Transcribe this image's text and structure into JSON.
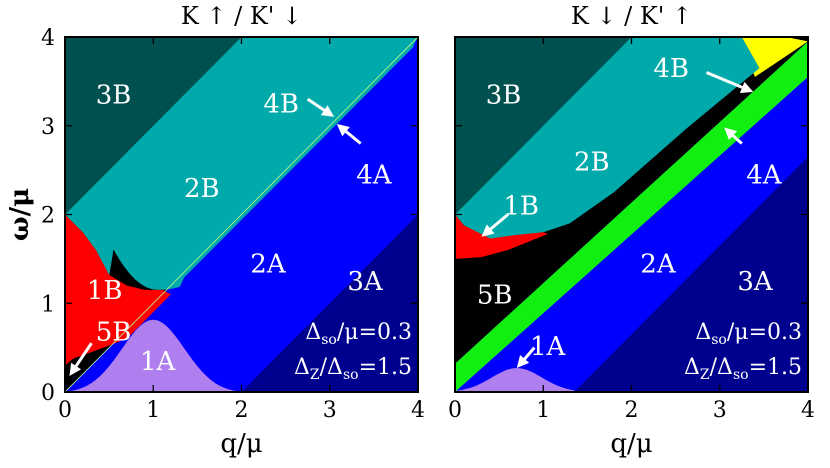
{
  "chart_data": [
    {
      "type": "area",
      "title": "K ↑ / K' ↓",
      "xlabel": "q/μ",
      "ylabel": "ω/μ",
      "xlim": [
        0,
        4
      ],
      "ylim": [
        0,
        4
      ],
      "xticks": [
        "0",
        "1",
        "2",
        "3",
        "4"
      ],
      "yticks": [
        "0",
        "1",
        "2",
        "3",
        "4"
      ],
      "colors": {
        "1A": "#b07fef",
        "1B": "#ff0000",
        "2A": "#0000ff",
        "2B": "#00aaaa",
        "3A": "#00008f",
        "3B": "#00504f",
        "4A": "#ffff00",
        "4B": "#10ef10",
        "5B": "#000000"
      },
      "regions": [
        {
          "label": "3B",
          "x": 0.55,
          "y": 3.35
        },
        {
          "label": "2B",
          "x": 1.55,
          "y": 2.3
        },
        {
          "label": "1B",
          "x": 0.45,
          "y": 1.15
        },
        {
          "label": "5B",
          "x": 0.55,
          "y": 0.68
        },
        {
          "label": "1A",
          "x": 1.05,
          "y": 0.35
        },
        {
          "label": "2A",
          "x": 2.3,
          "y": 1.45
        },
        {
          "label": "3A",
          "x": 3.4,
          "y": 1.25
        },
        {
          "label": "4B",
          "x": 2.45,
          "y": 3.25
        },
        {
          "label": "4A",
          "x": 3.5,
          "y": 2.45
        }
      ],
      "arrows": [
        {
          "from": [
            2.75,
            3.3
          ],
          "to": [
            3.05,
            3.1
          ]
        },
        {
          "from": [
            3.35,
            2.8
          ],
          "to": [
            3.08,
            3.02
          ]
        },
        {
          "from": [
            0.3,
            0.55
          ],
          "to": [
            0.05,
            0.18
          ]
        }
      ],
      "annotations": [
        "Δ",
        "so",
        "/μ=0.3",
        "Δ",
        "Z",
        "/Δ",
        "so",
        "=1.5"
      ]
    },
    {
      "type": "area",
      "title": "K ↓ / K' ↑",
      "xlabel": "q/μ",
      "ylabel": "",
      "xlim": [
        0,
        4
      ],
      "ylim": [
        0,
        4
      ],
      "xticks": [
        "0",
        "1",
        "2",
        "3",
        "4"
      ],
      "yticks": [],
      "regions": [
        {
          "label": "3B",
          "x": 0.55,
          "y": 3.35
        },
        {
          "label": "2B",
          "x": 1.55,
          "y": 2.6
        },
        {
          "label": "1B",
          "x": 0.75,
          "y": 2.1
        },
        {
          "label": "5B",
          "x": 0.45,
          "y": 1.1
        },
        {
          "label": "1A",
          "x": 1.05,
          "y": 0.52
        },
        {
          "label": "2A",
          "x": 2.3,
          "y": 1.45
        },
        {
          "label": "3A",
          "x": 3.4,
          "y": 1.25
        },
        {
          "label": "4B",
          "x": 2.45,
          "y": 3.65
        },
        {
          "label": "4A",
          "x": 3.5,
          "y": 2.45
        }
      ],
      "arrows": [
        {
          "from": [
            2.85,
            3.6
          ],
          "to": [
            3.38,
            3.38
          ]
        },
        {
          "from": [
            3.25,
            2.8
          ],
          "to": [
            3.05,
            2.98
          ]
        },
        {
          "from": [
            0.6,
            2.0
          ],
          "to": [
            0.3,
            1.75
          ]
        },
        {
          "from": [
            0.9,
            0.5
          ],
          "to": [
            0.7,
            0.27
          ]
        }
      ],
      "annotations": [
        "Δ",
        "so",
        "/μ=0.3",
        "Δ",
        "Z",
        "/Δ",
        "so",
        "=1.5"
      ]
    }
  ]
}
